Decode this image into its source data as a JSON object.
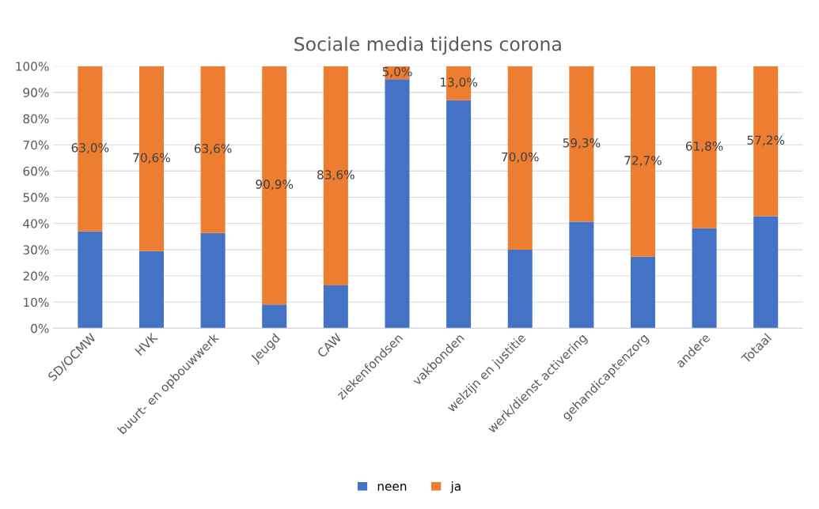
{
  "chart_data": {
    "type": "bar",
    "title": "Sociale media tijdens corona",
    "stacked": true,
    "categories": [
      "SD/OCMW",
      "HVK",
      "buurt- en opbouwwerk",
      "Jeugd",
      "CAW",
      "ziekenfondsen",
      "vakbonden",
      "welzijn en justitie",
      "werk/dienst activering",
      "gehandicaptenzorg",
      "andere",
      "Totaal"
    ],
    "series": [
      {
        "name": "neen",
        "color": "#4472c4",
        "values": [
          37.0,
          29.4,
          36.4,
          9.1,
          16.4,
          95.0,
          87.0,
          30.0,
          40.7,
          27.3,
          38.2,
          42.8
        ]
      },
      {
        "name": "ja",
        "color": "#ed7d31",
        "values": [
          63.0,
          70.6,
          63.6,
          90.9,
          83.6,
          5.0,
          13.0,
          70.0,
          59.3,
          72.7,
          61.8,
          57.2
        ],
        "value_labels": [
          "63,0%",
          "70,6%",
          "63,6%",
          "90,9%",
          "83,6%",
          "5,0%",
          "13,0%",
          "70,0%",
          "59,3%",
          "72,7%",
          "61,8%",
          "57,2%"
        ]
      }
    ],
    "ylim": [
      0,
      100
    ],
    "yticks": [
      {
        "value": 0,
        "label": "0%"
      },
      {
        "value": 10,
        "label": "10%"
      },
      {
        "value": 20,
        "label": "20%"
      },
      {
        "value": 30,
        "label": "30%"
      },
      {
        "value": 40,
        "label": "40%"
      },
      {
        "value": 50,
        "label": "50%"
      },
      {
        "value": 60,
        "label": "60%"
      },
      {
        "value": 70,
        "label": "70%"
      },
      {
        "value": 80,
        "label": "80%"
      },
      {
        "value": 90,
        "label": "90%"
      },
      {
        "value": 100,
        "label": "100%"
      }
    ],
    "grid": "y",
    "legend": "bottom"
  }
}
